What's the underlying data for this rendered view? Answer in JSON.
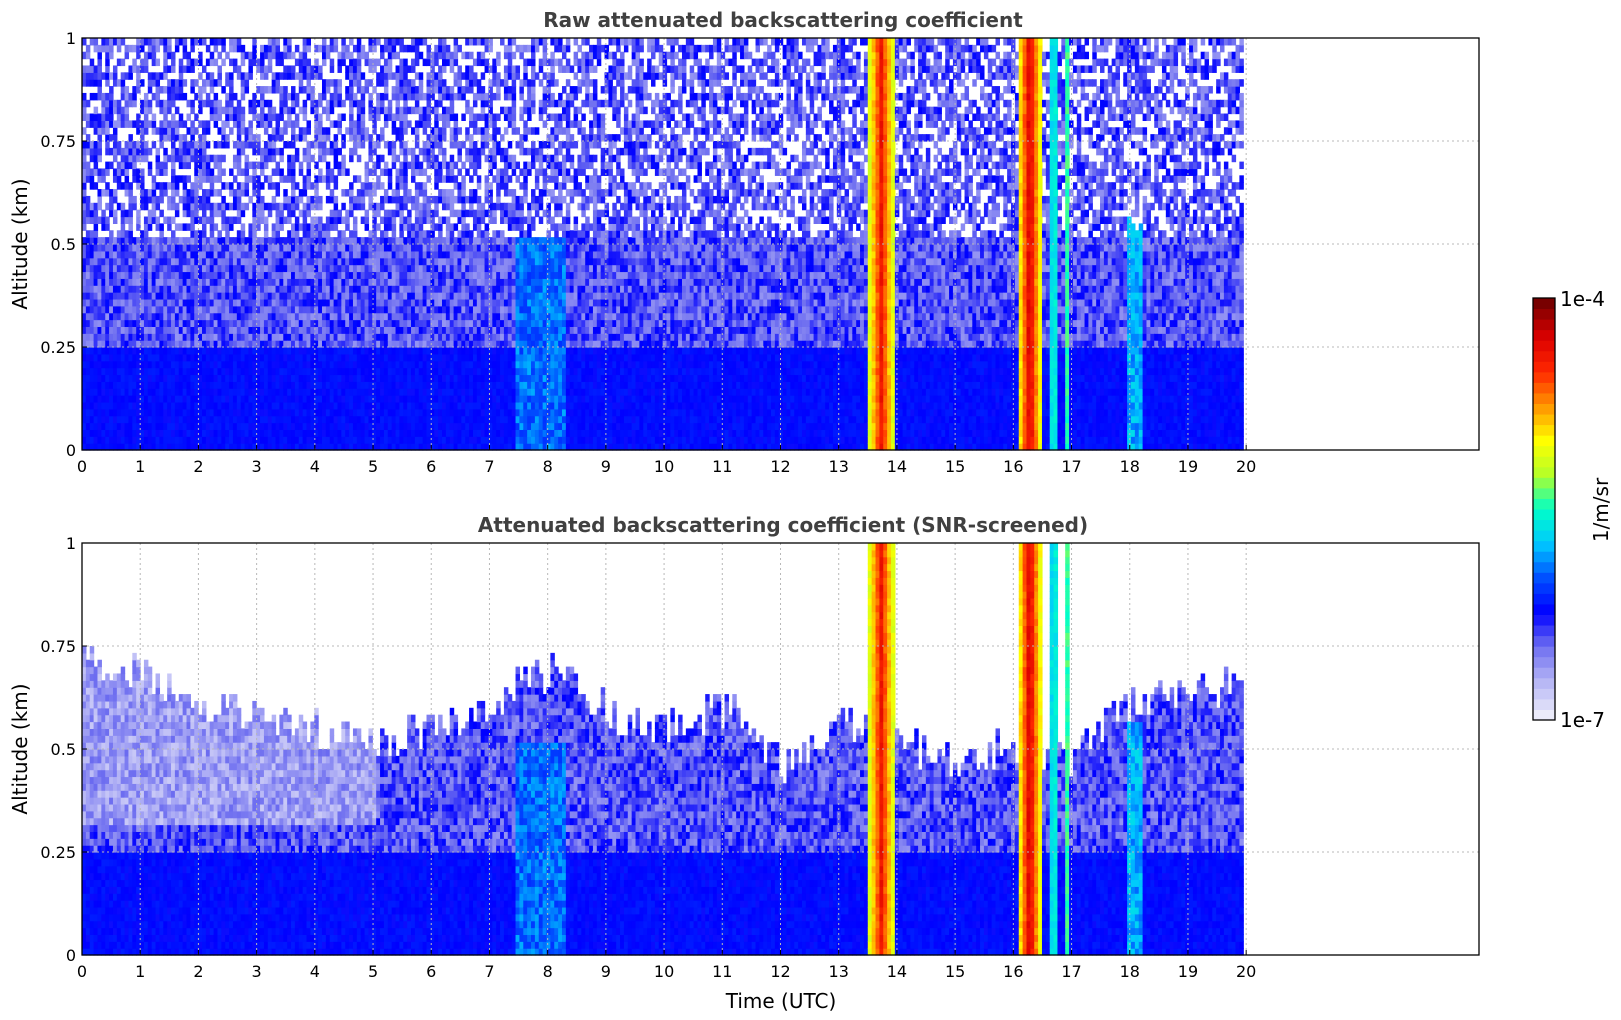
{
  "chart_data": [
    {
      "type": "heatmap",
      "title": "Raw attenuated backscattering coefficient",
      "xlabel": "",
      "ylabel": "Altitude (km)",
      "xlim": [
        0,
        24
      ],
      "ylim": [
        0,
        1
      ],
      "xticks": [
        "0",
        "1",
        "2",
        "3",
        "4",
        "5",
        "6",
        "7",
        "8",
        "9",
        "10",
        "11",
        "12",
        "13",
        "14",
        "15",
        "16",
        "17",
        "18",
        "19",
        "20"
      ],
      "yticks": [
        "0",
        "0.25",
        "0.5",
        "0.75",
        "1"
      ],
      "grid": true,
      "data_extent_hours": [
        0,
        19.95
      ],
      "features": [
        {
          "kind": "background",
          "x": [
            0,
            19.95
          ],
          "level": "low",
          "description_level": 0.22
        },
        {
          "kind": "dense_layer",
          "x": [
            0,
            19.95
          ],
          "y": [
            0,
            0.25
          ],
          "level": 0.24
        },
        {
          "kind": "column",
          "x": [
            13.45,
            13.95
          ],
          "y": [
            0,
            1
          ],
          "level": 0.85
        },
        {
          "kind": "column",
          "x": [
            16.05,
            16.45
          ],
          "y": [
            0,
            1
          ],
          "level": 0.9
        },
        {
          "kind": "column",
          "x": [
            16.6,
            16.72
          ],
          "y": [
            0,
            1
          ],
          "level": 0.6
        },
        {
          "kind": "column",
          "x": [
            16.85,
            16.95
          ],
          "y": [
            0,
            1
          ],
          "level": 0.55
        },
        {
          "kind": "plume",
          "x": [
            7.4,
            8.3
          ],
          "y": [
            0,
            0.5
          ],
          "level": 0.4
        },
        {
          "kind": "plume",
          "x": [
            17.9,
            18.2
          ],
          "y": [
            0,
            0.55
          ],
          "level": 0.45
        }
      ]
    },
    {
      "type": "heatmap",
      "title": "Attenuated backscattering coefficient (SNR-screened)",
      "xlabel": "Time (UTC)",
      "ylabel": "Altitude (km)",
      "xlim": [
        0,
        24
      ],
      "ylim": [
        0,
        1
      ],
      "xticks": [
        "0",
        "1",
        "2",
        "3",
        "4",
        "5",
        "6",
        "7",
        "8",
        "9",
        "10",
        "11",
        "12",
        "13",
        "14",
        "15",
        "16",
        "17",
        "18",
        "19",
        "20"
      ],
      "yticks": [
        "0",
        "0.25",
        "0.5",
        "0.75",
        "1"
      ],
      "grid": true,
      "data_extent_hours": [
        0,
        19.95
      ],
      "layer_top_km": [
        {
          "x": 0,
          "y": 0.72
        },
        {
          "x": 2,
          "y": 0.6
        },
        {
          "x": 4,
          "y": 0.55
        },
        {
          "x": 5,
          "y": 0.5
        },
        {
          "x": 6,
          "y": 0.55
        },
        {
          "x": 7,
          "y": 0.6
        },
        {
          "x": 8,
          "y": 0.68
        },
        {
          "x": 9,
          "y": 0.58
        },
        {
          "x": 10,
          "y": 0.55
        },
        {
          "x": 11,
          "y": 0.6
        },
        {
          "x": 12,
          "y": 0.45
        },
        {
          "x": 13,
          "y": 0.55
        },
        {
          "x": 14,
          "y": 0.5
        },
        {
          "x": 15,
          "y": 0.45
        },
        {
          "x": 16,
          "y": 0.5
        },
        {
          "x": 17,
          "y": 0.48
        },
        {
          "x": 18,
          "y": 0.6
        },
        {
          "x": 19,
          "y": 0.65
        },
        {
          "x": 19.95,
          "y": 0.63
        }
      ]
    }
  ],
  "colorbar": {
    "label": "1/m/sr",
    "max_label": "1e-4",
    "min_label": "1e-7",
    "colormap": [
      "#ebebfa",
      "#b4b4f5",
      "#6e6ef0",
      "#0000ff",
      "#0050ff",
      "#00c8ff",
      "#00ffc8",
      "#b4ff28",
      "#ffff00",
      "#ff9600",
      "#ff2800",
      "#dc0000",
      "#780000"
    ]
  }
}
